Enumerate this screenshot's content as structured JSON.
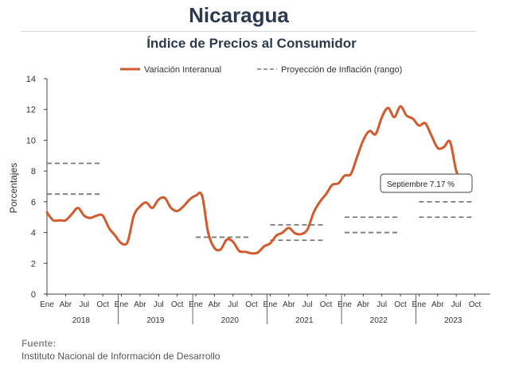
{
  "header": {
    "title": "Nicaragua",
    "subtitle": "Índice de Precios al Consumidor"
  },
  "source": {
    "label": "Fuente:",
    "text": "Instituto Nacional de Información de  Desarrollo"
  },
  "chart_data": {
    "type": "line",
    "ylabel": "Porcentajes",
    "ylim": [
      0,
      14
    ],
    "yticks": [
      0,
      2,
      4,
      6,
      8,
      10,
      12,
      14
    ],
    "x_month_labels": [
      "Ene",
      "Abr",
      "Jul",
      "Oct"
    ],
    "years": [
      "2018",
      "2019",
      "2020",
      "2021",
      "2022",
      "2023"
    ],
    "grid": false,
    "legend_position": "top",
    "colors": {
      "line": "#d35a2c",
      "projection": "#7a7a7a",
      "axis": "#444444"
    },
    "series": [
      {
        "name": "Variación Interanual",
        "style": "solid",
        "x_start": "2018-01",
        "values": [
          5.3,
          4.8,
          4.8,
          4.8,
          5.2,
          5.6,
          5.1,
          4.95,
          5.1,
          5.1,
          4.3,
          3.8,
          3.3,
          3.4,
          5.1,
          5.7,
          5.95,
          5.6,
          6.15,
          6.25,
          5.6,
          5.4,
          5.7,
          6.15,
          6.4,
          6.4,
          4.0,
          3.0,
          2.9,
          3.55,
          3.4,
          2.8,
          2.75,
          2.65,
          2.7,
          3.1,
          3.3,
          3.8,
          4.0,
          4.3,
          3.95,
          3.9,
          4.2,
          5.3,
          6.0,
          6.5,
          7.1,
          7.2,
          7.7,
          7.8,
          8.9,
          10.0,
          10.6,
          10.4,
          11.5,
          12.1,
          11.5,
          12.2,
          11.6,
          11.4,
          10.95,
          11.1,
          10.3,
          9.5,
          9.55,
          9.9,
          8.0,
          7.4,
          7.17
        ]
      },
      {
        "name": "Proyección de Inflación (rango)",
        "style": "dashed",
        "segments": [
          {
            "year": "2018",
            "values": [
              6.5,
              8.5
            ]
          },
          {
            "year": "2020",
            "values": [
              3.7,
              3.7
            ]
          },
          {
            "year": "2021",
            "values": [
              3.5,
              4.5
            ]
          },
          {
            "year": "2022",
            "values": [
              4.0,
              5.0
            ]
          },
          {
            "year": "2023",
            "values": [
              5.0,
              6.0
            ]
          }
        ]
      }
    ],
    "annotations": [
      {
        "text": "Septiembre 7.17  %",
        "x": "2023-09",
        "y": 7.17
      }
    ]
  }
}
